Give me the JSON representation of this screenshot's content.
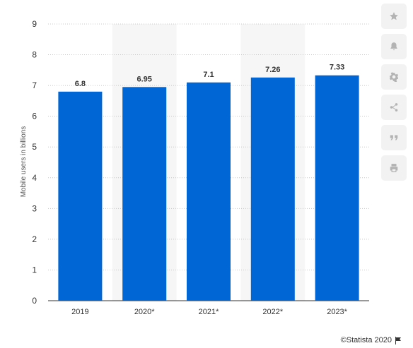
{
  "chart_data": {
    "type": "bar",
    "categories": [
      "2019",
      "2020*",
      "2021*",
      "2022*",
      "2023*"
    ],
    "values": [
      6.8,
      6.95,
      7.1,
      7.26,
      7.33
    ],
    "value_labels": [
      "6.8",
      "6.95",
      "7.1",
      "7.26",
      "7.33"
    ],
    "title": "",
    "xlabel": "",
    "ylabel": "Mobile users in billions",
    "ylim": [
      0,
      9
    ],
    "yticks": [
      "0",
      "1",
      "2",
      "3",
      "4",
      "5",
      "6",
      "7",
      "8",
      "9"
    ],
    "grid": true,
    "bar_color": "#0066d6"
  },
  "sidebar": {
    "buttons": [
      "star-icon",
      "bell-icon",
      "gear-icon",
      "share-icon",
      "quote-icon",
      "print-icon"
    ]
  },
  "credit": "©Statista 2020"
}
